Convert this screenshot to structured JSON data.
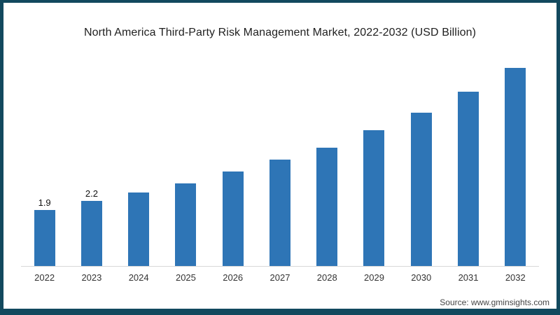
{
  "frame": {
    "border_color": "#12495e",
    "background": "#ffffff"
  },
  "chart_data": {
    "type": "bar",
    "title": "North America Third-Party Risk Management Market, 2022-2032 (USD Billion)",
    "categories": [
      "2022",
      "2023",
      "2024",
      "2025",
      "2026",
      "2027",
      "2028",
      "2029",
      "2030",
      "2031",
      "2032"
    ],
    "values": [
      1.9,
      2.2,
      2.5,
      2.8,
      3.2,
      3.6,
      4.0,
      4.6,
      5.2,
      5.9,
      6.7
    ],
    "data_labels": [
      "1.9",
      "2.2",
      null,
      null,
      null,
      null,
      null,
      null,
      null,
      null,
      null
    ],
    "bar_color": "#2e75b6",
    "axis_line_color": "#d8d8d8",
    "xlabel": "",
    "ylabel": "",
    "ylim": [
      0,
      7
    ],
    "gridlines": false,
    "legend": "none"
  },
  "footer": {
    "source_label": "Source: www.gminsights.com"
  }
}
